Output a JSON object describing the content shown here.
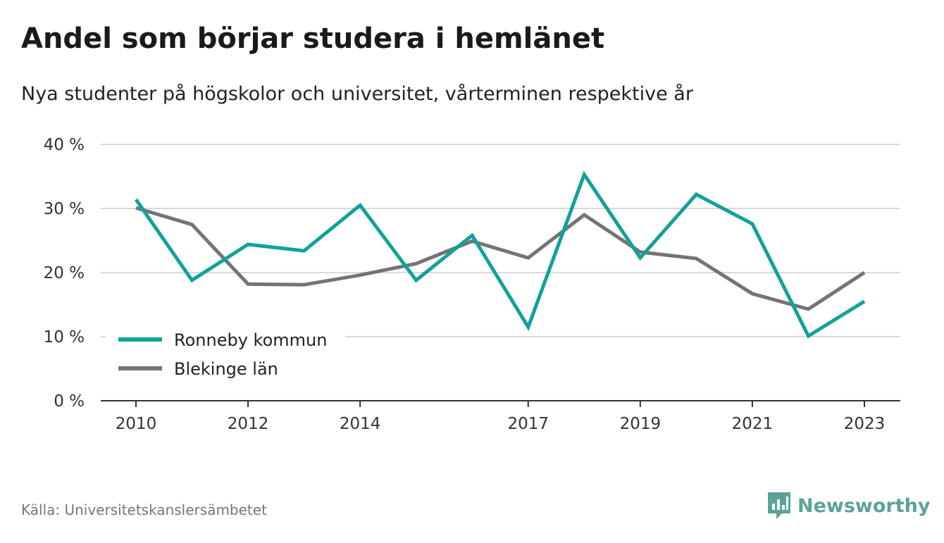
{
  "title": "Andel som börjar studera i hemlänet",
  "subtitle": "Nya studenter på högskolor och universitet, vårterminen respektive år",
  "source": "Källa: Universitetskanslersämbetet",
  "brand": {
    "name": "Newsworthy",
    "icon": "newsworthy-logo-icon",
    "color": "#5aa39a"
  },
  "chart_data": {
    "type": "line",
    "x": [
      2010,
      2011,
      2012,
      2013,
      2014,
      2015,
      2016,
      2017,
      2018,
      2019,
      2020,
      2021,
      2022,
      2023
    ],
    "x_tick_values": [
      2010,
      2012,
      2014,
      2017,
      2019,
      2021,
      2023
    ],
    "x_tick_labels": [
      "2010",
      "2012",
      "2014",
      "2017",
      "2019",
      "2021",
      "2023"
    ],
    "y_tick_values": [
      0,
      10,
      20,
      30,
      40
    ],
    "y_tick_labels": [
      "0 %",
      "10 %",
      "20 %",
      "30 %",
      "40 %"
    ],
    "ylim": [
      0,
      40
    ],
    "xlim": [
      2010,
      2023
    ],
    "grid": true,
    "legend_position": "bottom-left",
    "series": [
      {
        "name": "Ronneby kommun",
        "color": "#12a19a",
        "values": [
          31.4,
          18.8,
          24.4,
          23.4,
          30.5,
          18.8,
          25.8,
          11.5,
          35.3,
          22.3,
          32.2,
          27.6,
          10.1,
          15.5
        ]
      },
      {
        "name": "Blekinge län",
        "color": "#747378",
        "values": [
          30.1,
          27.5,
          18.2,
          18.1,
          19.6,
          21.4,
          24.9,
          22.3,
          29.0,
          23.2,
          22.2,
          16.7,
          14.3,
          20.0
        ]
      }
    ]
  }
}
